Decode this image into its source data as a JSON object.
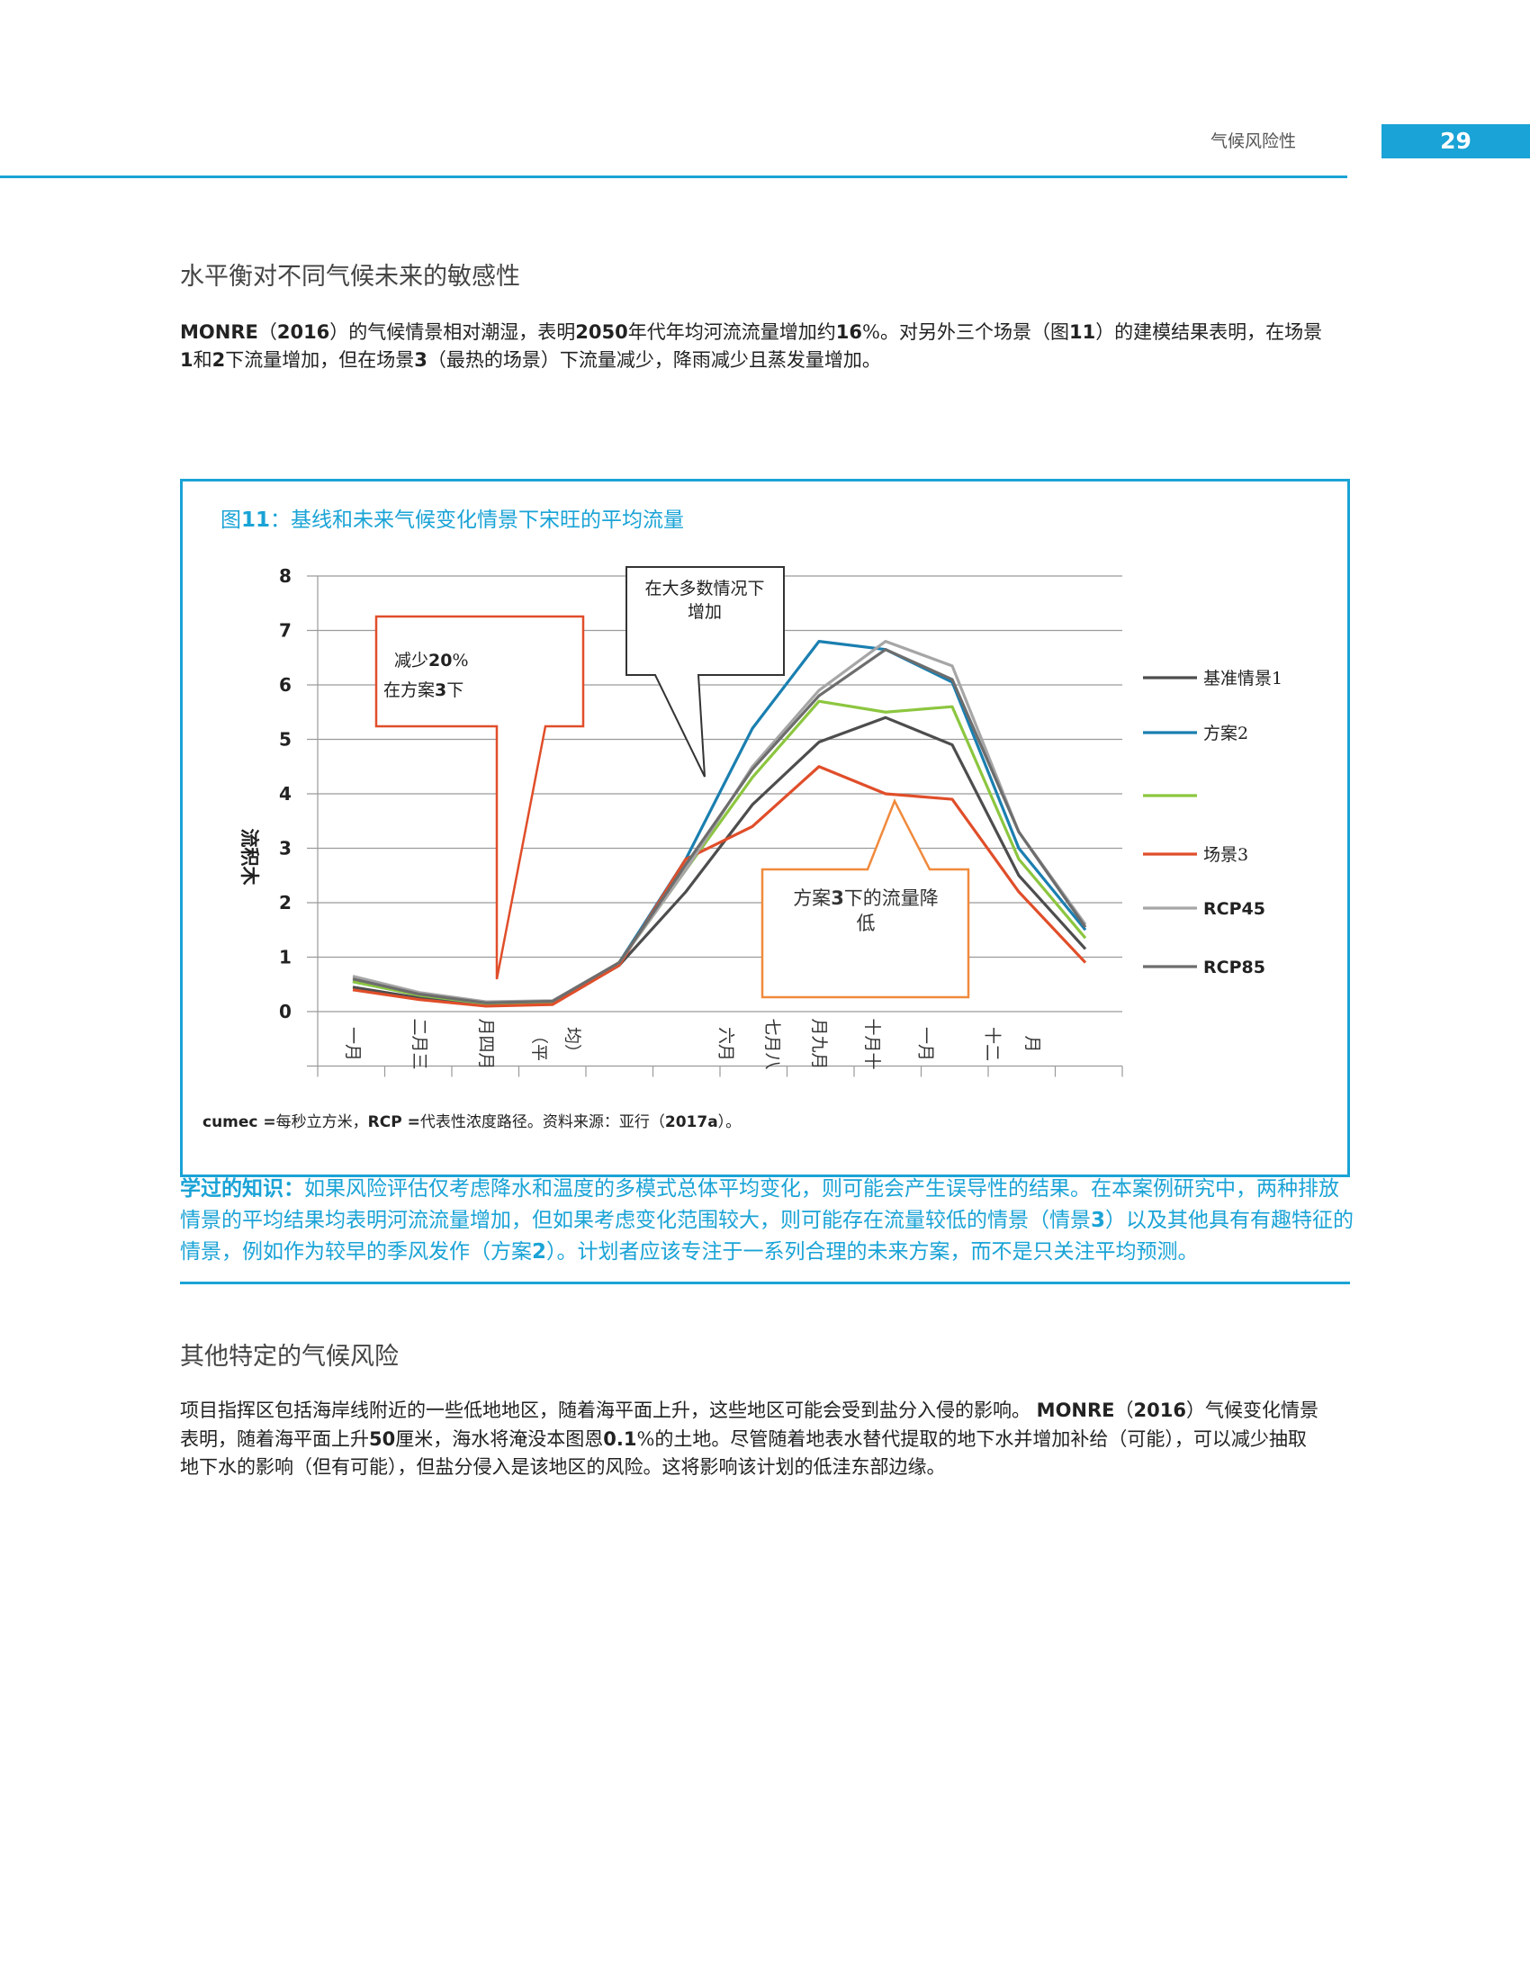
{
  "header": {
    "title": "气候风险性",
    "page_number": "29"
  },
  "section1": {
    "heading": "水平衡对不同气候未来的敏感性",
    "p1": {
      "s1": "MONRE",
      "s2": "（",
      "s3": "2016",
      "s4": "）的气候情景相对潮湿，表明",
      "s5": "2050",
      "s6": "年代年均河流流量增加约",
      "s7": "16",
      "s8": "%。对另外三个场景（图",
      "s9": "11",
      "s10": "）的建模结果表明，在场景"
    },
    "p2": {
      "s1": "1",
      "s2": "和",
      "s3": "2",
      "s4": "下流量增加，但在场景",
      "s5": "3",
      "s6": "（最热的场景）下流量减少，降雨减少且蒸发量增加。"
    }
  },
  "figure": {
    "caption_prefix": "图",
    "caption_num": "11",
    "caption_text": "：基线和未来气候变化情景下宋旺的平均流量",
    "note": {
      "s1": "cumec =",
      "s2": "每秒立方米，",
      "s3": "RCP =",
      "s4": "代表性浓度路径。资料来源：亚行（",
      "s5": "2017a",
      "s6": "）。"
    }
  },
  "chart_data": {
    "type": "line",
    "ylabel": "流积木",
    "yticks": [
      "0",
      "1",
      "2",
      "3",
      "4",
      "5",
      "6",
      "7",
      "8"
    ],
    "ylim": [
      -1,
      8
    ],
    "x": [
      0,
      1,
      2,
      3,
      4,
      5,
      6,
      7,
      8,
      9,
      10,
      11
    ],
    "x_tick_labels": [
      {
        "text": "一月",
        "pos": 0
      },
      {
        "text": "二月三",
        "pos": 1
      },
      {
        "text": "月四月",
        "pos": 2
      },
      {
        "text": "（平",
        "pos": 2.8
      },
      {
        "text": "均）",
        "pos": 3.3
      },
      {
        "text": "六月",
        "pos": 5.6
      },
      {
        "text": "七月八",
        "pos": 6.3
      },
      {
        "text": "月九月",
        "pos": 7.0
      },
      {
        "text": "十月十",
        "pos": 7.8
      },
      {
        "text": "一月",
        "pos": 8.6
      },
      {
        "text": "十二",
        "pos": 9.6
      },
      {
        "text": "月",
        "pos": 10.2
      }
    ],
    "series": [
      {
        "name": "基准情景1",
        "color": "#4d4d4d",
        "values": [
          0.45,
          0.25,
          0.12,
          0.15,
          0.85,
          2.2,
          3.8,
          4.95,
          5.4,
          4.9,
          2.5,
          1.15
        ]
      },
      {
        "name": "方案2",
        "color": "#1a7fb0",
        "values": [
          0.55,
          0.3,
          0.14,
          0.17,
          0.9,
          2.8,
          5.2,
          6.8,
          6.65,
          6.05,
          3.0,
          1.5
        ]
      },
      {
        "name": "",
        "color": "#8cc63f",
        "values": [
          0.55,
          0.3,
          0.15,
          0.18,
          0.9,
          2.6,
          4.3,
          5.7,
          5.5,
          5.6,
          2.8,
          1.35
        ]
      },
      {
        "name": "场景3",
        "color": "#e04e2a",
        "values": [
          0.4,
          0.22,
          0.1,
          0.13,
          0.85,
          2.8,
          3.4,
          4.5,
          4.0,
          3.9,
          2.2,
          0.9
        ]
      },
      {
        "name": "RCP45",
        "color": "#a6a6a6",
        "values": [
          0.65,
          0.35,
          0.18,
          0.2,
          0.9,
          2.6,
          4.5,
          5.9,
          6.8,
          6.35,
          3.3,
          1.6
        ]
      },
      {
        "name": "RCP85",
        "color": "#6d6d6d",
        "values": [
          0.6,
          0.32,
          0.16,
          0.19,
          0.9,
          2.7,
          4.45,
          5.8,
          6.65,
          6.1,
          3.3,
          1.55
        ]
      }
    ],
    "annotations": {
      "decrease": {
        "line1_a": "减少",
        "line1_b": "20",
        "line1_c": "%",
        "line2_a": "在方案",
        "line2_b": "3",
        "line2_c": "下"
      },
      "increase": {
        "line1": "在大多数情况下",
        "line2": "增加"
      },
      "low": {
        "line1_a": "方案",
        "line1_b": "3",
        "line1_c": "下的流量降",
        "line2": "低"
      }
    },
    "grid": true,
    "legend": "right"
  },
  "lesson": {
    "lead": "学过的知识：",
    "t1": "如果风险评估仅考虑降水和温度的多模式总体平均变化，则可能会产生误导性的结果。在本案例研究中，两种排放情景的平均结果均表明河流流量增加，但如果考虑变化范围较大，则可能存在流量较低的情景（情景",
    "n1": "3",
    "t2": "）以及其他具有有趣特征的情景，例如作为较早的季风发作（方案",
    "n2": "2",
    "t3": "）。计划者应该专注于一系列合理的未来方案，而不是只关注平均预测。"
  },
  "section2": {
    "heading": "其他特定的气候风险",
    "p1": {
      "s1": "项目指挥区包括海岸线附近的一些低地地区，随着海平面上升，这些地区可能会受到盐分入侵的影响。 ",
      "s2": "MONRE",
      "s3": "（",
      "s4": "2016",
      "s5": "）气候变化情景"
    },
    "p2": {
      "s1": "表明，随着海平面上升",
      "s2": "50",
      "s3": "厘米，海水将淹没本图恩",
      "s4": "0.1",
      "s5": "%的土地。尽管随着地表水替代提取的地下水并增加补给（可能），可以减少抽取"
    },
    "p3": "地下水的影响（但有可能），但盐分侵入是该地区的风险。这将影响该计划的低洼东部边缘。"
  }
}
